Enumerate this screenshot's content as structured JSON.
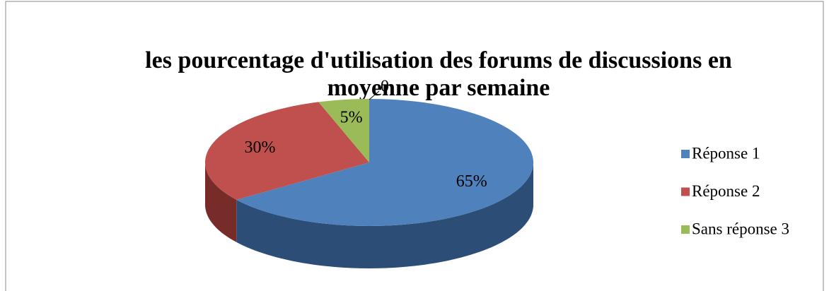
{
  "chart_data": {
    "type": "pie3d",
    "title": [
      "les pourcentage d'utilisation des forums de discussions en",
      "moyenne par semaine"
    ],
    "categories": [
      "Réponse 1",
      "Réponse 2",
      "Sans réponse 3"
    ],
    "values": [
      65,
      30,
      5
    ],
    "value_labels": [
      "65%",
      "30%",
      "5%"
    ],
    "colors": [
      "#4f81bd",
      "#c0504d",
      "#9bbb59"
    ],
    "side_colors": [
      "#2c4d75",
      "#772c2a",
      "#5f7530"
    ],
    "annotations": [
      "0"
    ],
    "legend": "right"
  }
}
